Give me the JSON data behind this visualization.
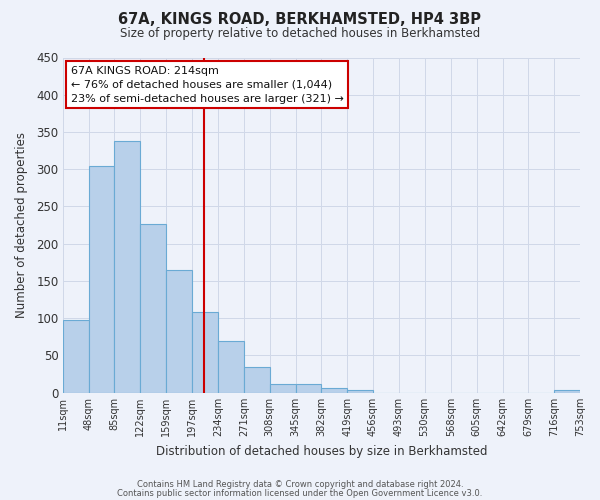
{
  "title": "67A, KINGS ROAD, BERKHAMSTED, HP4 3BP",
  "subtitle": "Size of property relative to detached houses in Berkhamsted",
  "xlabel": "Distribution of detached houses by size in Berkhamsted",
  "ylabel": "Number of detached properties",
  "bar_left_edges": [
    11,
    48,
    85,
    122,
    159,
    197,
    234,
    271,
    308,
    345,
    382,
    419,
    456,
    493,
    530,
    568,
    605,
    642,
    679,
    716
  ],
  "bar_heights": [
    97,
    304,
    338,
    226,
    165,
    108,
    69,
    35,
    12,
    11,
    6,
    3,
    0,
    0,
    0,
    0,
    0,
    0,
    0,
    3
  ],
  "bin_width": 37,
  "bar_color": "#b8d0ea",
  "bar_edgecolor": "#6aaad4",
  "bar_linewidth": 0.8,
  "vline_x": 214,
  "vline_color": "#cc0000",
  "ylim": [
    0,
    450
  ],
  "xlim": [
    11,
    753
  ],
  "xtick_positions": [
    11,
    48,
    85,
    122,
    159,
    197,
    234,
    271,
    308,
    345,
    382,
    419,
    456,
    493,
    530,
    568,
    605,
    642,
    679,
    716,
    753
  ],
  "xtick_labels": [
    "11sqm",
    "48sqm",
    "85sqm",
    "122sqm",
    "159sqm",
    "197sqm",
    "234sqm",
    "271sqm",
    "308sqm",
    "345sqm",
    "382sqm",
    "419sqm",
    "456sqm",
    "493sqm",
    "530sqm",
    "568sqm",
    "605sqm",
    "642sqm",
    "679sqm",
    "716sqm",
    "753sqm"
  ],
  "ytick_positions": [
    0,
    50,
    100,
    150,
    200,
    250,
    300,
    350,
    400,
    450
  ],
  "annotation_title": "67A KINGS ROAD: 214sqm",
  "annotation_line1": "← 76% of detached houses are smaller (1,044)",
  "annotation_line2": "23% of semi-detached houses are larger (321) →",
  "annotation_box_color": "#ffffff",
  "annotation_box_edgecolor": "#cc0000",
  "grid_color": "#d0d8e8",
  "background_color": "#eef2fa",
  "footer_line1": "Contains HM Land Registry data © Crown copyright and database right 2024.",
  "footer_line2": "Contains public sector information licensed under the Open Government Licence v3.0."
}
